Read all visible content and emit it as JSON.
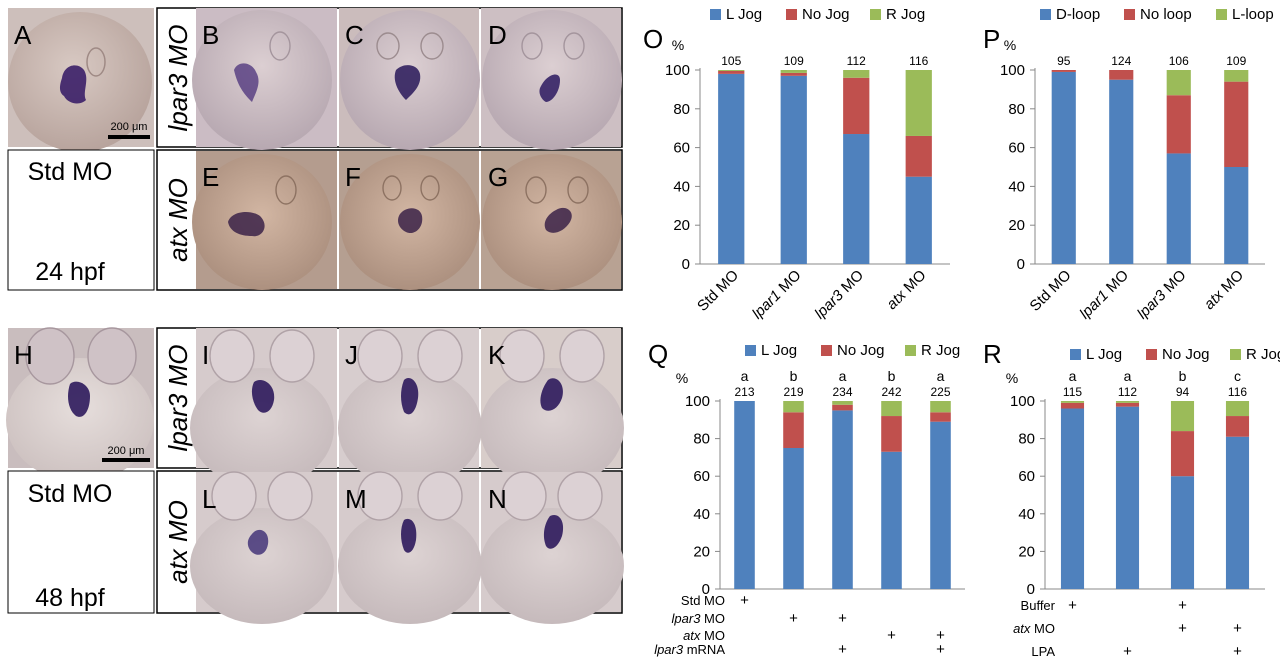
{
  "figure": {
    "panels_top": [
      {
        "letter": "A"
      },
      {
        "letter": "B"
      },
      {
        "letter": "C"
      },
      {
        "letter": "D"
      },
      {
        "letter": "E"
      },
      {
        "letter": "F"
      },
      {
        "letter": "G"
      }
    ],
    "panels_bottom": [
      {
        "letter": "H"
      },
      {
        "letter": "I"
      },
      {
        "letter": "J"
      },
      {
        "letter": "K"
      },
      {
        "letter": "L"
      },
      {
        "letter": "M"
      },
      {
        "letter": "N"
      }
    ],
    "row_labels_top": {
      "upper": "lpar3 MO",
      "lower": "atx MO",
      "std": "Std MO",
      "stage": "24 hpf"
    },
    "row_labels_bottom": {
      "upper": "lpar3 MO",
      "lower": "atx MO",
      "std": "Std MO",
      "stage": "48 hpf"
    },
    "scale_bar": "200 μm",
    "colors": {
      "blue": "#4f81bd",
      "red": "#c0504d",
      "green": "#9bbb59"
    }
  },
  "chart_data": [
    {
      "type": "bar",
      "panel": "O",
      "stacked": true,
      "unit": "%",
      "legend": [
        "L Jog",
        "No Jog",
        "R Jog"
      ],
      "categories": [
        "Std MO",
        "lpar1 MO",
        "lpar3 MO",
        "atx MO"
      ],
      "series": [
        {
          "name": "L Jog",
          "values": [
            98,
            97,
            67,
            45
          ]
        },
        {
          "name": "No Jog",
          "values": [
            1.5,
            1.5,
            29,
            21
          ]
        },
        {
          "name": "R Jog",
          "values": [
            0.5,
            1.5,
            4,
            34
          ]
        }
      ],
      "n": [
        "105",
        "109",
        "112",
        "116"
      ],
      "yticks": [
        "0",
        "20",
        "40",
        "60",
        "80",
        "100"
      ],
      "ylim": [
        0,
        100
      ]
    },
    {
      "type": "bar",
      "panel": "P",
      "stacked": true,
      "unit": "%",
      "legend": [
        "D-loop",
        "No loop",
        "L-loop"
      ],
      "categories": [
        "Std MO",
        "lpar1 MO",
        "lpar3 MO",
        "atx MO"
      ],
      "series": [
        {
          "name": "D-loop",
          "values": [
            99,
            95,
            57,
            50
          ]
        },
        {
          "name": "No loop",
          "values": [
            1,
            5,
            30,
            44
          ]
        },
        {
          "name": "L-loop",
          "values": [
            0,
            0,
            13,
            6
          ]
        }
      ],
      "n": [
        "95",
        "124",
        "106",
        "109"
      ],
      "yticks": [
        "0",
        "20",
        "40",
        "60",
        "80",
        "100"
      ],
      "ylim": [
        0,
        100
      ]
    },
    {
      "type": "bar",
      "panel": "Q",
      "stacked": true,
      "unit": "%",
      "legend": [
        "L Jog",
        "No Jog",
        "R Jog"
      ],
      "series": [
        {
          "name": "L Jog",
          "values": [
            100,
            75,
            95,
            73,
            89
          ]
        },
        {
          "name": "No Jog",
          "values": [
            0,
            19,
            3,
            19,
            5
          ]
        },
        {
          "name": "R Jog",
          "values": [
            0,
            6,
            2,
            8,
            6
          ]
        }
      ],
      "n": [
        "213",
        "219",
        "234",
        "242",
        "225"
      ],
      "letters": [
        "a",
        "b",
        "a",
        "b",
        "a"
      ],
      "conditions": [
        {
          "label": "Std MO",
          "marks": [
            "+",
            "",
            "",
            "",
            ""
          ]
        },
        {
          "label": "lpar3 MO",
          "marks": [
            "",
            "+",
            "+",
            "",
            ""
          ]
        },
        {
          "label": "atx MO",
          "marks": [
            "",
            "",
            "",
            "+",
            "+"
          ]
        },
        {
          "label": "lpar3 mRNA",
          "marks": [
            "",
            "",
            "+",
            "",
            "+"
          ]
        }
      ],
      "yticks": [
        "0",
        "20",
        "40",
        "60",
        "80",
        "100"
      ],
      "ylim": [
        0,
        100
      ]
    },
    {
      "type": "bar",
      "panel": "R",
      "stacked": true,
      "unit": "%",
      "legend": [
        "L Jog",
        "No Jog",
        "R Jog"
      ],
      "series": [
        {
          "name": "L Jog",
          "values": [
            96,
            97,
            60,
            81
          ]
        },
        {
          "name": "No Jog",
          "values": [
            3,
            2,
            24,
            11
          ]
        },
        {
          "name": "R Jog",
          "values": [
            1,
            1,
            16,
            8
          ]
        }
      ],
      "n": [
        "115",
        "112",
        "94",
        "116"
      ],
      "letters": [
        "a",
        "a",
        "b",
        "c"
      ],
      "conditions": [
        {
          "label": "Buffer",
          "marks": [
            "+",
            "",
            "+",
            ""
          ]
        },
        {
          "label": "atx MO",
          "marks": [
            "",
            "",
            "+",
            "+"
          ]
        },
        {
          "label": "LPA",
          "marks": [
            "",
            "+",
            "",
            "+"
          ]
        }
      ],
      "yticks": [
        "0",
        "20",
        "40",
        "60",
        "80",
        "100"
      ],
      "ylim": [
        0,
        100
      ]
    }
  ]
}
